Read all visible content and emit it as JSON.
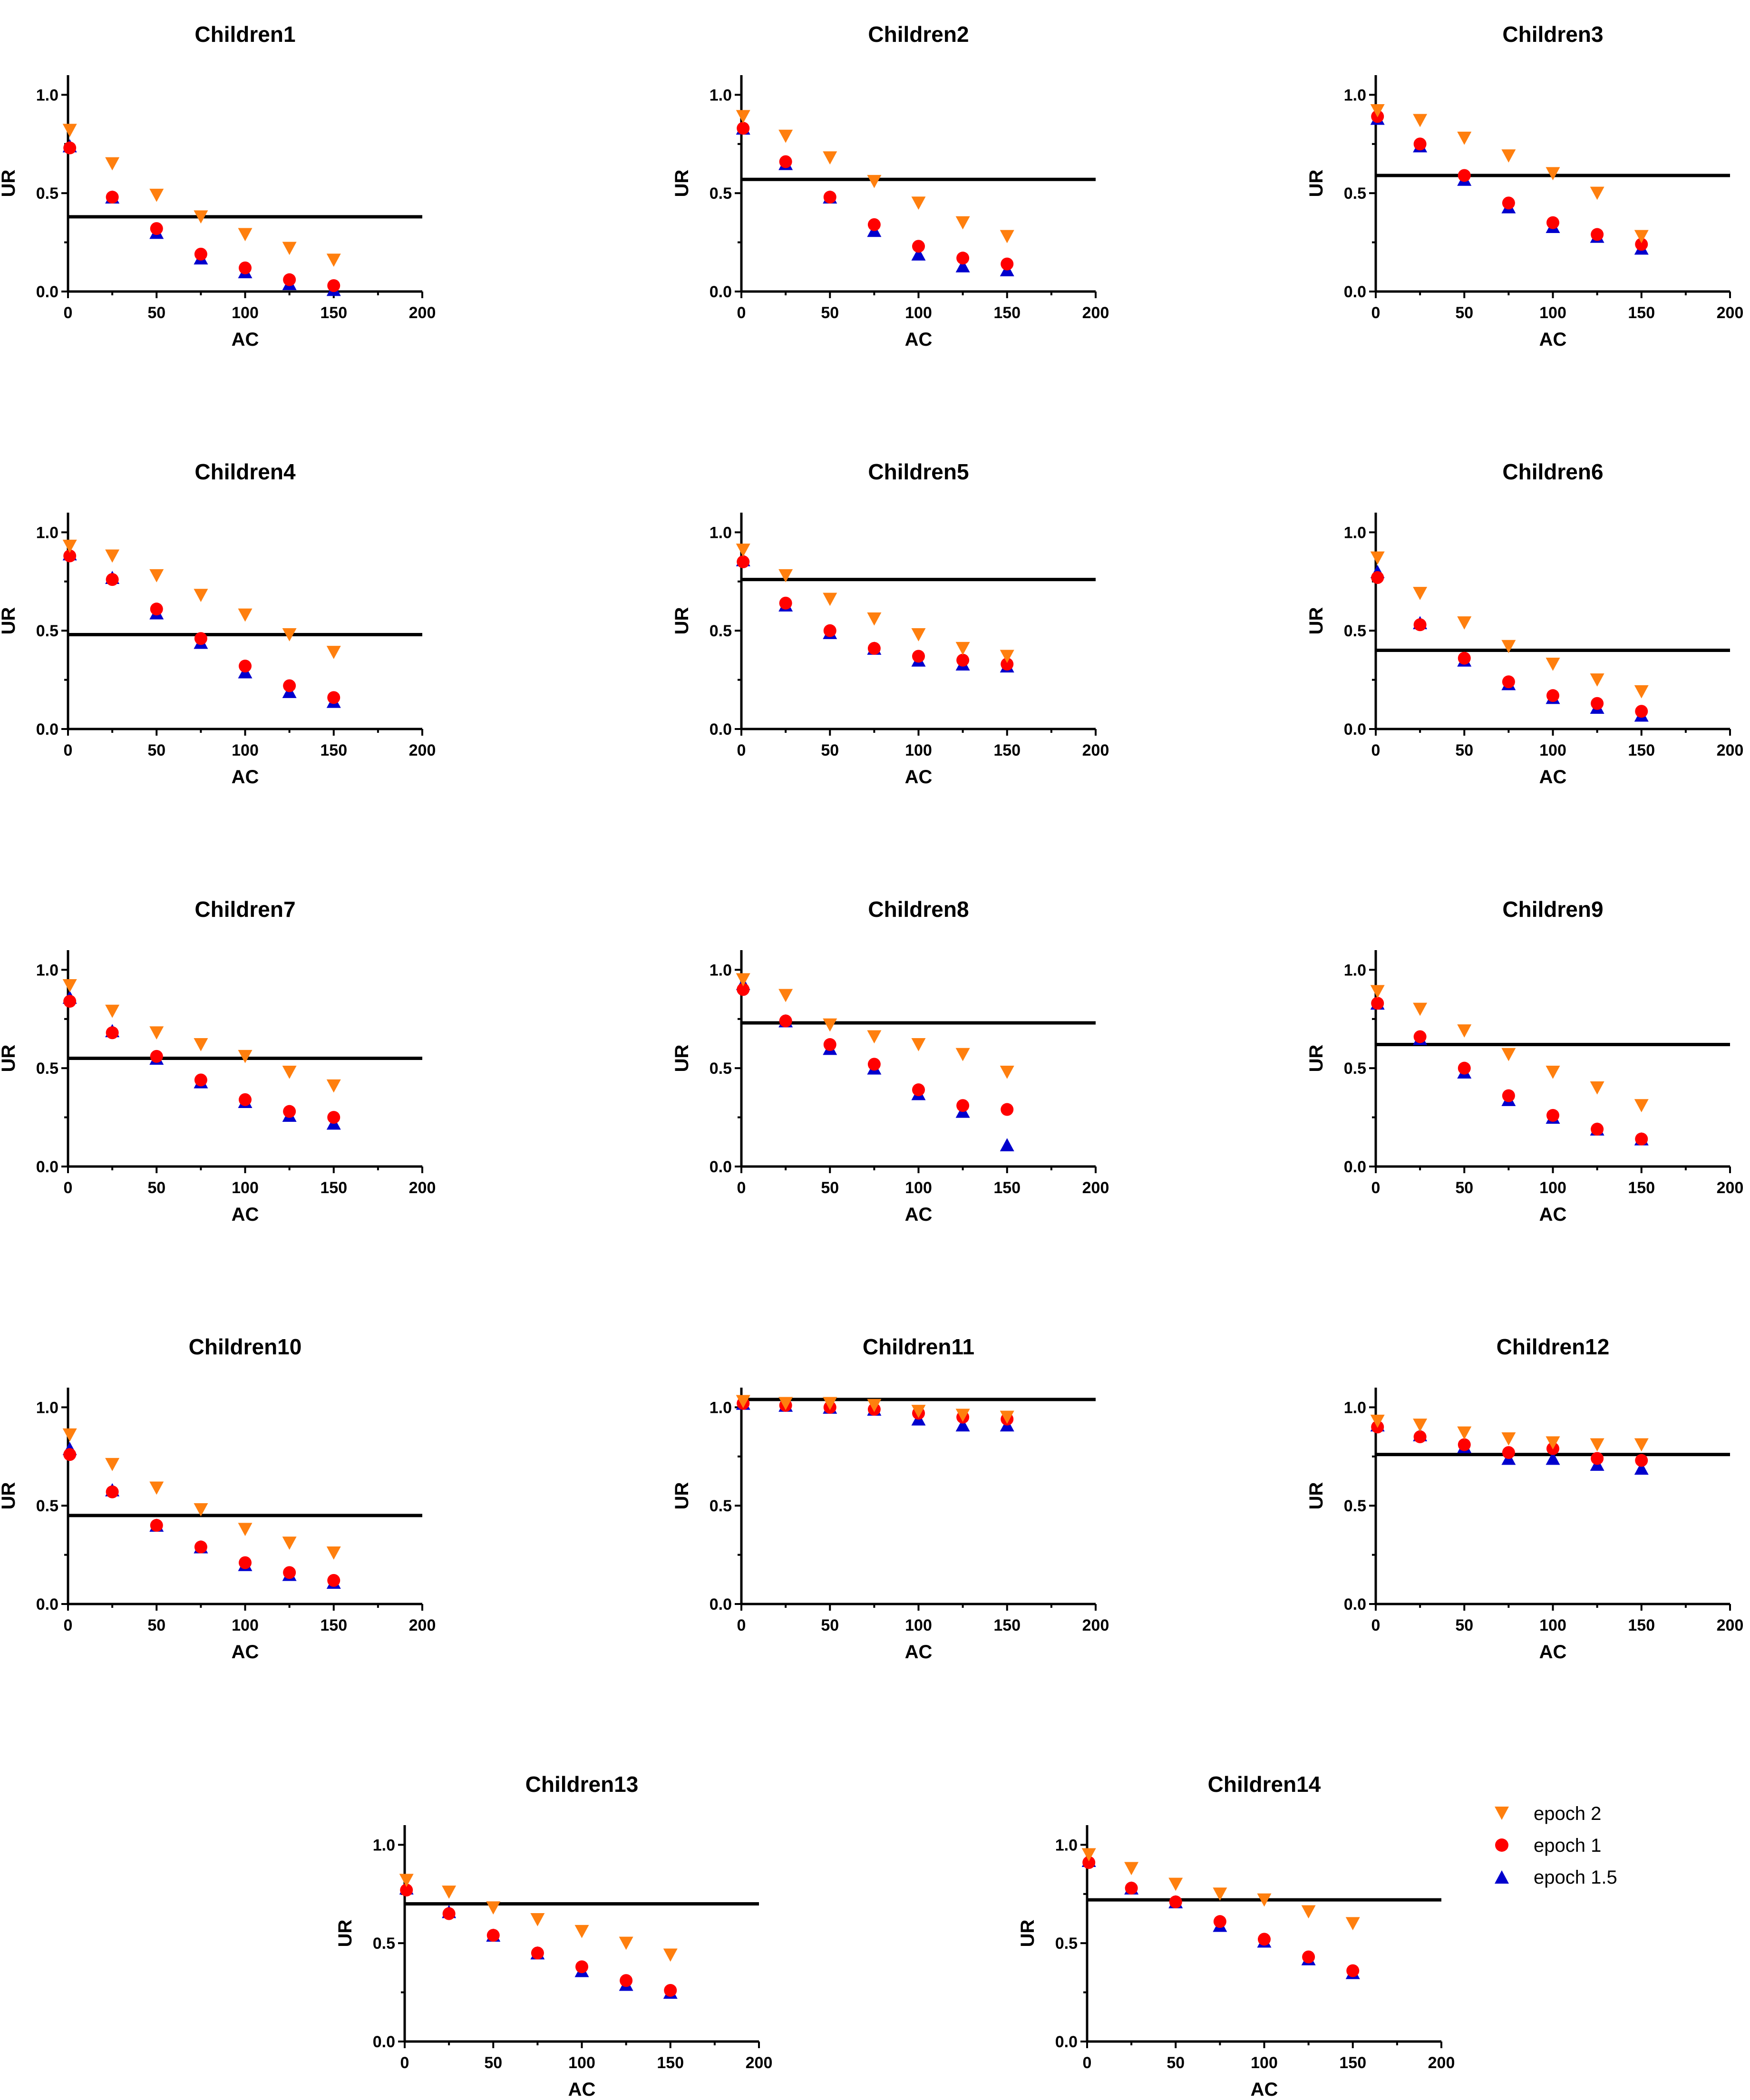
{
  "colors": {
    "epoch2": "#ff7f0e",
    "epoch1": "#ff0000",
    "epoch15": "#0000cd",
    "ref_line": "#000000"
  },
  "legend": {
    "items": [
      {
        "key": "epoch2",
        "label": "epoch 2",
        "marker": "triangle-down"
      },
      {
        "key": "epoch1",
        "label": "epoch 1",
        "marker": "circle"
      },
      {
        "key": "epoch15",
        "label": "epoch 1.5",
        "marker": "triangle-up"
      }
    ]
  },
  "chart_data": [
    {
      "type": "scatter",
      "title": "Children1",
      "xlabel": "AC",
      "ylabel": "UR",
      "xlim": [
        0,
        200
      ],
      "ylim": [
        0,
        1.1
      ],
      "xticks": [
        0,
        50,
        100,
        150,
        200
      ],
      "yticks": [
        0.0,
        0.5,
        1.0
      ],
      "xtick_labels": [
        "0",
        "50",
        "100",
        "150",
        "200"
      ],
      "ytick_labels": [
        "0.0",
        "0.5",
        "1.0"
      ],
      "ref_line": 0.38,
      "x": [
        1,
        25,
        50,
        75,
        100,
        125,
        150
      ],
      "series": [
        {
          "name": "epoch 2",
          "values": [
            0.82,
            0.65,
            0.49,
            0.38,
            0.29,
            0.22,
            0.16
          ]
        },
        {
          "name": "epoch 1",
          "values": [
            0.73,
            0.48,
            0.32,
            0.19,
            0.12,
            0.06,
            0.03
          ]
        },
        {
          "name": "epoch 1.5",
          "values": [
            0.74,
            0.48,
            0.3,
            0.17,
            0.1,
            0.04,
            0.01
          ]
        }
      ]
    },
    {
      "type": "scatter",
      "title": "Children2",
      "xlabel": "AC",
      "ylabel": "UR",
      "xlim": [
        0,
        200
      ],
      "ylim": [
        0,
        1.1
      ],
      "xticks": [
        0,
        50,
        100,
        150,
        200
      ],
      "yticks": [
        0.0,
        0.5,
        1.0
      ],
      "xtick_labels": [
        "0",
        "50",
        "100",
        "150",
        "200"
      ],
      "ytick_labels": [
        "0.0",
        "0.5",
        "1.0"
      ],
      "ref_line": 0.57,
      "x": [
        1,
        25,
        50,
        75,
        100,
        125,
        150
      ],
      "series": [
        {
          "name": "epoch 2",
          "values": [
            0.89,
            0.79,
            0.68,
            0.56,
            0.45,
            0.35,
            0.28
          ]
        },
        {
          "name": "epoch 1",
          "values": [
            0.83,
            0.66,
            0.48,
            0.34,
            0.23,
            0.17,
            0.14
          ]
        },
        {
          "name": "epoch 1.5",
          "values": [
            0.83,
            0.65,
            0.48,
            0.31,
            0.19,
            0.13,
            0.11
          ]
        }
      ]
    },
    {
      "type": "scatter",
      "title": "Children3",
      "xlabel": "AC",
      "ylabel": "UR",
      "xlim": [
        0,
        200
      ],
      "ylim": [
        0,
        1.1
      ],
      "xticks": [
        0,
        50,
        100,
        150,
        200
      ],
      "yticks": [
        0.0,
        0.5,
        1.0
      ],
      "xtick_labels": [
        "0",
        "50",
        "100",
        "150",
        "200"
      ],
      "ytick_labels": [
        "0.0",
        "0.5",
        "1.0"
      ],
      "ref_line": 0.59,
      "x": [
        1,
        25,
        50,
        75,
        100,
        125,
        150
      ],
      "series": [
        {
          "name": "epoch 2",
          "values": [
            0.92,
            0.87,
            0.78,
            0.69,
            0.6,
            0.5,
            0.28
          ]
        },
        {
          "name": "epoch 1",
          "values": [
            0.89,
            0.75,
            0.59,
            0.45,
            0.35,
            0.29,
            0.24
          ]
        },
        {
          "name": "epoch 1.5",
          "values": [
            0.88,
            0.74,
            0.57,
            0.43,
            0.33,
            0.28,
            0.22
          ]
        }
      ]
    },
    {
      "type": "scatter",
      "title": "Children4",
      "xlabel": "AC",
      "ylabel": "UR",
      "xlim": [
        0,
        200
      ],
      "ylim": [
        0,
        1.1
      ],
      "xticks": [
        0,
        50,
        100,
        150,
        200
      ],
      "yticks": [
        0.0,
        0.5,
        1.0
      ],
      "xtick_labels": [
        "0",
        "50",
        "100",
        "150",
        "200"
      ],
      "ytick_labels": [
        "0.0",
        "0.5",
        "1.0"
      ],
      "ref_line": 0.48,
      "x": [
        1,
        25,
        50,
        75,
        100,
        125,
        150
      ],
      "series": [
        {
          "name": "epoch 2",
          "values": [
            0.93,
            0.88,
            0.78,
            0.68,
            0.58,
            0.48,
            0.39
          ]
        },
        {
          "name": "epoch 1",
          "values": [
            0.88,
            0.76,
            0.61,
            0.46,
            0.32,
            0.22,
            0.16
          ]
        },
        {
          "name": "epoch 1.5",
          "values": [
            0.89,
            0.77,
            0.59,
            0.44,
            0.29,
            0.19,
            0.14
          ]
        }
      ]
    },
    {
      "type": "scatter",
      "title": "Children5",
      "xlabel": "AC",
      "ylabel": "UR",
      "xlim": [
        0,
        200
      ],
      "ylim": [
        0,
        1.1
      ],
      "xticks": [
        0,
        50,
        100,
        150,
        200
      ],
      "yticks": [
        0.0,
        0.5,
        1.0
      ],
      "xtick_labels": [
        "0",
        "50",
        "100",
        "150",
        "200"
      ],
      "ytick_labels": [
        "0.0",
        "0.5",
        "1.0"
      ],
      "ref_line": 0.76,
      "x": [
        1,
        25,
        50,
        75,
        100,
        125,
        150
      ],
      "series": [
        {
          "name": "epoch 2",
          "values": [
            0.91,
            0.78,
            0.66,
            0.56,
            0.48,
            0.41,
            0.37
          ]
        },
        {
          "name": "epoch 1",
          "values": [
            0.85,
            0.64,
            0.5,
            0.41,
            0.37,
            0.35,
            0.33
          ]
        },
        {
          "name": "epoch 1.5",
          "values": [
            0.86,
            0.63,
            0.49,
            0.41,
            0.35,
            0.33,
            0.32
          ]
        }
      ]
    },
    {
      "type": "scatter",
      "title": "Children6",
      "xlabel": "AC",
      "ylabel": "UR",
      "xlim": [
        0,
        200
      ],
      "ylim": [
        0,
        1.1
      ],
      "xticks": [
        0,
        50,
        100,
        150,
        200
      ],
      "yticks": [
        0.0,
        0.5,
        1.0
      ],
      "xtick_labels": [
        "0",
        "50",
        "100",
        "150",
        "200"
      ],
      "ytick_labels": [
        "0.0",
        "0.5",
        "1.0"
      ],
      "ref_line": 0.4,
      "x": [
        1,
        25,
        50,
        75,
        100,
        125,
        150
      ],
      "series": [
        {
          "name": "epoch 2",
          "values": [
            0.87,
            0.69,
            0.54,
            0.42,
            0.33,
            0.25,
            0.19
          ]
        },
        {
          "name": "epoch 1",
          "values": [
            0.77,
            0.53,
            0.36,
            0.24,
            0.17,
            0.13,
            0.09
          ]
        },
        {
          "name": "epoch 1.5",
          "values": [
            0.8,
            0.54,
            0.35,
            0.23,
            0.16,
            0.11,
            0.07
          ]
        }
      ]
    },
    {
      "type": "scatter",
      "title": "Children7",
      "xlabel": "AC",
      "ylabel": "UR",
      "xlim": [
        0,
        200
      ],
      "ylim": [
        0,
        1.1
      ],
      "xticks": [
        0,
        50,
        100,
        150,
        200
      ],
      "yticks": [
        0.0,
        0.5,
        1.0
      ],
      "xtick_labels": [
        "0",
        "50",
        "100",
        "150",
        "200"
      ],
      "ytick_labels": [
        "0.0",
        "0.5",
        "1.0"
      ],
      "ref_line": 0.55,
      "x": [
        1,
        25,
        50,
        75,
        100,
        125,
        150
      ],
      "series": [
        {
          "name": "epoch 2",
          "values": [
            0.92,
            0.79,
            0.68,
            0.62,
            0.56,
            0.48,
            0.41
          ]
        },
        {
          "name": "epoch 1",
          "values": [
            0.84,
            0.68,
            0.56,
            0.44,
            0.34,
            0.28,
            0.25
          ]
        },
        {
          "name": "epoch 1.5",
          "values": [
            0.86,
            0.69,
            0.55,
            0.43,
            0.33,
            0.26,
            0.22
          ]
        }
      ]
    },
    {
      "type": "scatter",
      "title": "Children8",
      "xlabel": "AC",
      "ylabel": "UR",
      "xlim": [
        0,
        200
      ],
      "ylim": [
        0,
        1.1
      ],
      "xticks": [
        0,
        50,
        100,
        150,
        200
      ],
      "yticks": [
        0.0,
        0.5,
        1.0
      ],
      "xtick_labels": [
        "0",
        "50",
        "100",
        "150",
        "200"
      ],
      "ytick_labels": [
        "0.0",
        "0.5",
        "1.0"
      ],
      "ref_line": 0.73,
      "x": [
        1,
        25,
        50,
        75,
        100,
        125,
        150
      ],
      "series": [
        {
          "name": "epoch 2",
          "values": [
            0.95,
            0.87,
            0.72,
            0.66,
            0.62,
            0.57,
            0.48
          ]
        },
        {
          "name": "epoch 1",
          "values": [
            0.9,
            0.74,
            0.62,
            0.52,
            0.39,
            0.31,
            0.29
          ]
        },
        {
          "name": "epoch 1.5",
          "values": [
            0.93,
            0.74,
            0.6,
            0.5,
            0.37,
            0.28,
            0.11
          ]
        }
      ]
    },
    {
      "type": "scatter",
      "title": "Children9",
      "xlabel": "AC",
      "ylabel": "UR",
      "xlim": [
        0,
        200
      ],
      "ylim": [
        0,
        1.1
      ],
      "xticks": [
        0,
        50,
        100,
        150,
        200
      ],
      "yticks": [
        0.0,
        0.5,
        1.0
      ],
      "xtick_labels": [
        "0",
        "50",
        "100",
        "150",
        "200"
      ],
      "ytick_labels": [
        "0.0",
        "0.5",
        "1.0"
      ],
      "ref_line": 0.62,
      "x": [
        1,
        25,
        50,
        75,
        100,
        125,
        150
      ],
      "series": [
        {
          "name": "epoch 2",
          "values": [
            0.89,
            0.8,
            0.69,
            0.57,
            0.48,
            0.4,
            0.31
          ]
        },
        {
          "name": "epoch 1",
          "values": [
            0.83,
            0.66,
            0.5,
            0.36,
            0.26,
            0.19,
            0.14
          ]
        },
        {
          "name": "epoch 1.5",
          "values": [
            0.83,
            0.65,
            0.48,
            0.34,
            0.25,
            0.19,
            0.14
          ]
        }
      ]
    },
    {
      "type": "scatter",
      "title": "Children10",
      "xlabel": "AC",
      "ylabel": "UR",
      "xlim": [
        0,
        200
      ],
      "ylim": [
        0,
        1.1
      ],
      "xticks": [
        0,
        50,
        100,
        150,
        200
      ],
      "yticks": [
        0.0,
        0.5,
        1.0
      ],
      "xtick_labels": [
        "0",
        "50",
        "100",
        "150",
        "200"
      ],
      "ytick_labels": [
        "0.0",
        "0.5",
        "1.0"
      ],
      "ref_line": 0.45,
      "x": [
        1,
        25,
        50,
        75,
        100,
        125,
        150
      ],
      "series": [
        {
          "name": "epoch 2",
          "values": [
            0.86,
            0.71,
            0.59,
            0.48,
            0.38,
            0.31,
            0.26
          ]
        },
        {
          "name": "epoch 1",
          "values": [
            0.76,
            0.57,
            0.4,
            0.29,
            0.21,
            0.16,
            0.12
          ]
        },
        {
          "name": "epoch 1.5",
          "values": [
            0.79,
            0.58,
            0.4,
            0.29,
            0.2,
            0.15,
            0.11
          ]
        }
      ]
    },
    {
      "type": "scatter",
      "title": "Children11",
      "xlabel": "AC",
      "ylabel": "UR",
      "xlim": [
        0,
        200
      ],
      "ylim": [
        0,
        1.1
      ],
      "xticks": [
        0,
        50,
        100,
        150,
        200
      ],
      "yticks": [
        0.0,
        0.5,
        1.0
      ],
      "xtick_labels": [
        "0",
        "50",
        "100",
        "150",
        "200"
      ],
      "ytick_labels": [
        "0.0",
        "0.5",
        "1.0"
      ],
      "ref_line": 1.04,
      "x": [
        1,
        25,
        50,
        75,
        100,
        125,
        150
      ],
      "series": [
        {
          "name": "epoch 2",
          "values": [
            1.03,
            1.02,
            1.02,
            1.01,
            0.98,
            0.96,
            0.95
          ]
        },
        {
          "name": "epoch 1",
          "values": [
            1.02,
            1.01,
            1.0,
            0.99,
            0.97,
            0.95,
            0.94
          ]
        },
        {
          "name": "epoch 1.5",
          "values": [
            1.02,
            1.01,
            1.0,
            0.99,
            0.94,
            0.91,
            0.91
          ]
        }
      ]
    },
    {
      "type": "scatter",
      "title": "Children12",
      "xlabel": "AC",
      "ylabel": "UR",
      "xlim": [
        0,
        200
      ],
      "ylim": [
        0,
        1.1
      ],
      "xticks": [
        0,
        50,
        100,
        150,
        200
      ],
      "yticks": [
        0.0,
        0.5,
        1.0
      ],
      "xtick_labels": [
        "0",
        "50",
        "100",
        "150",
        "200"
      ],
      "ytick_labels": [
        "0.0",
        "0.5",
        "1.0"
      ],
      "ref_line": 0.76,
      "x": [
        1,
        25,
        50,
        75,
        100,
        125,
        150
      ],
      "series": [
        {
          "name": "epoch 2",
          "values": [
            0.93,
            0.91,
            0.87,
            0.84,
            0.82,
            0.81,
            0.81
          ]
        },
        {
          "name": "epoch 1",
          "values": [
            0.9,
            0.85,
            0.81,
            0.77,
            0.79,
            0.74,
            0.73
          ]
        },
        {
          "name": "epoch 1.5",
          "values": [
            0.91,
            0.86,
            0.8,
            0.74,
            0.74,
            0.71,
            0.69
          ]
        }
      ]
    },
    {
      "type": "scatter",
      "title": "Children13",
      "xlabel": "AC",
      "ylabel": "UR",
      "xlim": [
        0,
        200
      ],
      "ylim": [
        0,
        1.1
      ],
      "xticks": [
        0,
        50,
        100,
        150,
        200
      ],
      "yticks": [
        0.0,
        0.5,
        1.0
      ],
      "xtick_labels": [
        "0",
        "50",
        "100",
        "150",
        "200"
      ],
      "ytick_labels": [
        "0.0",
        "0.5",
        "1.0"
      ],
      "ref_line": 0.7,
      "x": [
        1,
        25,
        50,
        75,
        100,
        125,
        150
      ],
      "series": [
        {
          "name": "epoch 2",
          "values": [
            0.82,
            0.76,
            0.68,
            0.62,
            0.56,
            0.5,
            0.44
          ]
        },
        {
          "name": "epoch 1",
          "values": [
            0.77,
            0.65,
            0.54,
            0.45,
            0.38,
            0.31,
            0.26
          ]
        },
        {
          "name": "epoch 1.5",
          "values": [
            0.78,
            0.66,
            0.54,
            0.45,
            0.36,
            0.29,
            0.25
          ]
        }
      ]
    },
    {
      "type": "scatter",
      "title": "Children14",
      "xlabel": "AC",
      "ylabel": "UR",
      "xlim": [
        0,
        200
      ],
      "ylim": [
        0,
        1.1
      ],
      "xticks": [
        0,
        50,
        100,
        150,
        200
      ],
      "yticks": [
        0.0,
        0.5,
        1.0
      ],
      "xtick_labels": [
        "0",
        "50",
        "100",
        "150",
        "200"
      ],
      "ytick_labels": [
        "0.0",
        "0.5",
        "1.0"
      ],
      "ref_line": 0.72,
      "x": [
        1,
        25,
        50,
        75,
        100,
        125,
        150
      ],
      "series": [
        {
          "name": "epoch 2",
          "values": [
            0.95,
            0.88,
            0.8,
            0.75,
            0.72,
            0.66,
            0.6
          ]
        },
        {
          "name": "epoch 1",
          "values": [
            0.91,
            0.78,
            0.71,
            0.61,
            0.52,
            0.43,
            0.36
          ]
        },
        {
          "name": "epoch 1.5",
          "values": [
            0.92,
            0.78,
            0.71,
            0.59,
            0.51,
            0.42,
            0.35
          ]
        }
      ]
    }
  ]
}
